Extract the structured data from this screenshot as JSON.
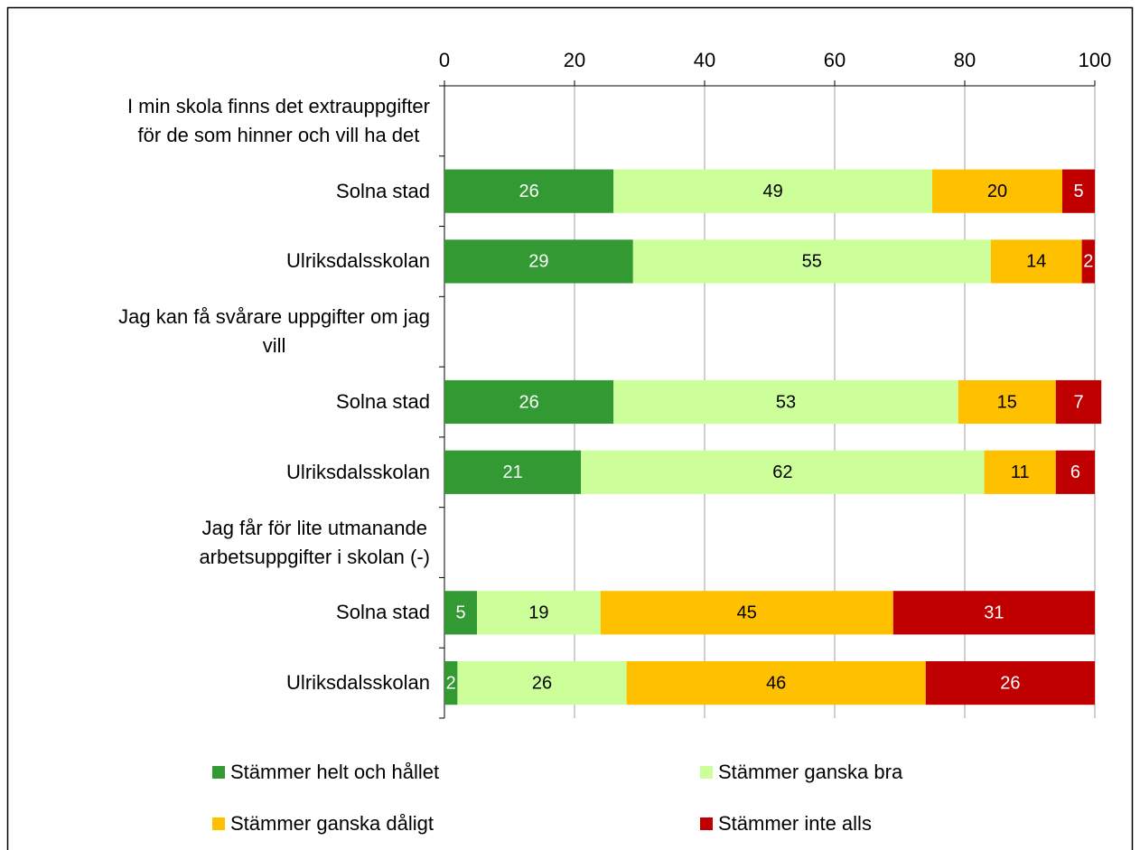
{
  "chart_data": {
    "type": "stacked_bar_horizontal",
    "categories": [
      "I min skola finns det extrauppgifter\nför de som hinner och vill ha det",
      "Solna stad",
      "Ulriksdalsskolan",
      "Jag kan få svårare uppgifter om jag\nvill",
      "Solna stad",
      "Ulriksdalsskolan",
      "Jag får för lite utmanande\narbetsuppgifter i skolan (-)",
      "Solna stad",
      "Ulriksdalsskolan"
    ],
    "series": [
      {
        "name": "Stämmer helt och hållet",
        "color": "#339933",
        "values": [
          null,
          26,
          29,
          null,
          26,
          21,
          null,
          5,
          2
        ]
      },
      {
        "name": "Stämmer ganska bra",
        "color": "#ccff99",
        "values": [
          null,
          49,
          55,
          null,
          53,
          62,
          null,
          19,
          26
        ]
      },
      {
        "name": "Stämmer ganska dåligt",
        "color": "#ffc000",
        "values": [
          null,
          20,
          14,
          null,
          15,
          11,
          null,
          45,
          46
        ]
      },
      {
        "name": "Stämmer inte alls",
        "color": "#c00000",
        "values": [
          null,
          5,
          2,
          null,
          7,
          6,
          null,
          31,
          26
        ]
      }
    ],
    "xlim": [
      0,
      100
    ],
    "xticks": [
      0,
      20,
      40,
      60,
      80,
      100
    ],
    "grid": true
  }
}
